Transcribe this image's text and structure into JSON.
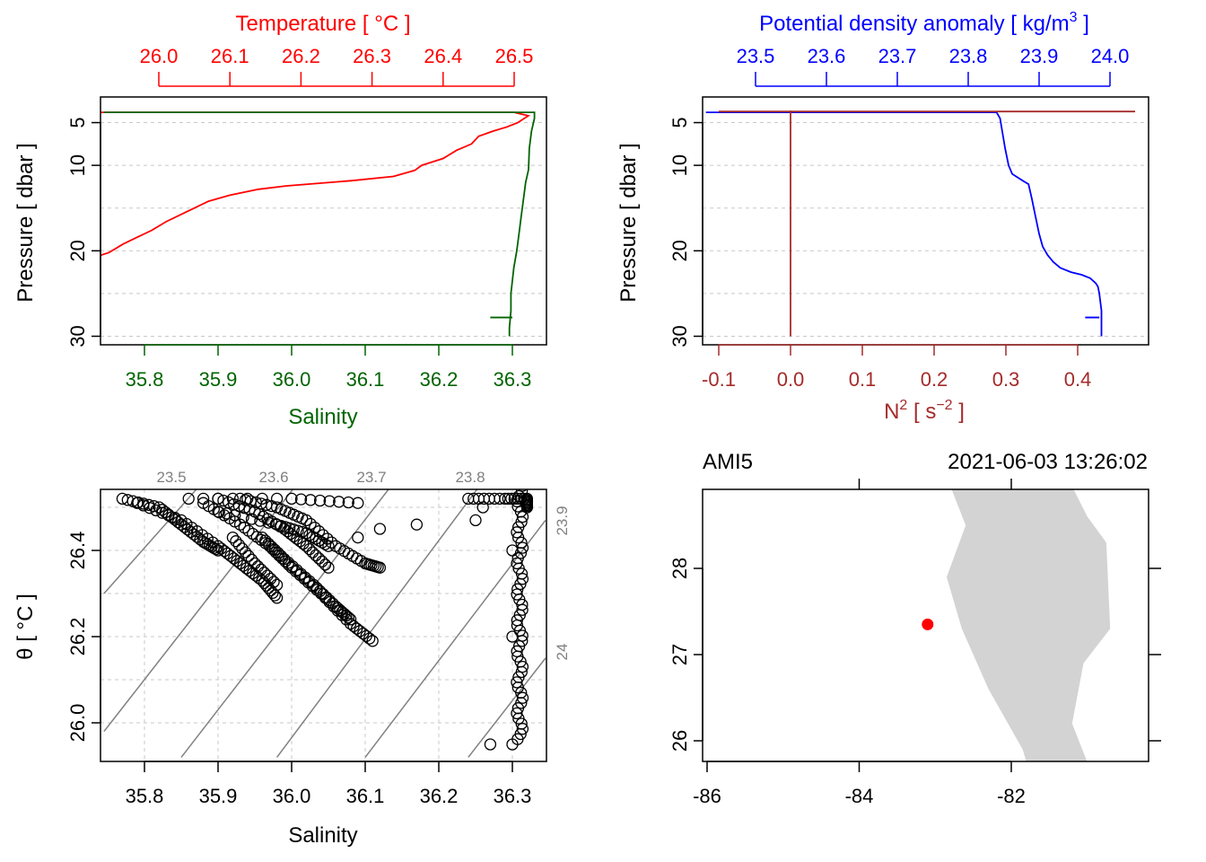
{
  "colors": {
    "temperature": "#ff0000",
    "salinity": "#006400",
    "density": "#0000ff",
    "n2": "#a52a2a",
    "grid": "#c8c8c8",
    "isopycnal": "#808080",
    "land": "#d3d3d3",
    "station": "#ff0000"
  },
  "chart_data": [
    {
      "type": "line",
      "panel": "temperature-salinity-profile",
      "top_axis_label": "Temperature [ °C ]",
      "bottom_axis_label": "Salinity",
      "ylabel": "Pressure [ dbar ]",
      "y_reversed": true,
      "ylim": [
        31,
        2
      ],
      "temperature_lim": [
        25.98,
        26.62
      ],
      "salinity_lim": [
        35.745,
        36.345
      ],
      "temperature_ticks": [
        "26.0",
        "26.1",
        "26.2",
        "26.3",
        "26.4",
        "26.5"
      ],
      "salinity_ticks": [
        "35.8",
        "35.9",
        "36.0",
        "36.1",
        "36.2",
        "36.3"
      ],
      "pressure_ticks": [
        "5",
        "10",
        "20",
        "30"
      ],
      "pressure_tick_values": [
        5,
        10,
        20,
        30
      ],
      "grid_pressures": [
        5,
        10,
        15,
        20,
        25,
        30
      ],
      "series": [
        {
          "name": "Temperature",
          "x_units": "°C",
          "points": [
            [
              25.88,
              3.8
            ],
            [
              26.5,
              3.8
            ],
            [
              26.52,
              4.2
            ],
            [
              26.505,
              5.0
            ],
            [
              26.49,
              5.5
            ],
            [
              26.47,
              6.0
            ],
            [
              26.45,
              6.6
            ],
            [
              26.44,
              7.5
            ],
            [
              26.42,
              8.2
            ],
            [
              26.4,
              9.2
            ],
            [
              26.37,
              10.0
            ],
            [
              26.36,
              10.6
            ],
            [
              26.33,
              11.3
            ],
            [
              26.27,
              11.8
            ],
            [
              26.18,
              12.4
            ],
            [
              26.14,
              12.8
            ],
            [
              26.1,
              13.5
            ],
            [
              26.07,
              14.2
            ],
            [
              26.05,
              15.0
            ],
            [
              26.03,
              15.8
            ],
            [
              26.01,
              16.6
            ],
            [
              25.99,
              17.6
            ],
            [
              25.97,
              18.4
            ],
            [
              25.95,
              19.2
            ],
            [
              25.93,
              20.2
            ],
            [
              25.9,
              21.0
            ],
            [
              25.85,
              21.6
            ],
            [
              25.78,
              22.0
            ],
            [
              25.69,
              22.6
            ],
            [
              25.63,
              22.9
            ],
            [
              25.62,
              23.3
            ],
            [
              25.61,
              23.8
            ],
            [
              25.59,
              24.2
            ],
            [
              25.57,
              24.7
            ],
            [
              25.555,
              25.5
            ],
            [
              25.553,
              27.5
            ],
            [
              25.553,
              30.0
            ]
          ]
        },
        {
          "name": "Salinity",
          "x_units": "PSU",
          "points": [
            [
              35.745,
              3.8
            ],
            [
              36.33,
              3.8
            ],
            [
              36.33,
              4.5
            ],
            [
              36.326,
              6.0
            ],
            [
              36.323,
              8.0
            ],
            [
              36.322,
              10.5
            ],
            [
              36.318,
              12.0
            ],
            [
              36.315,
              14.0
            ],
            [
              36.312,
              16.0
            ],
            [
              36.309,
              18.0
            ],
            [
              36.306,
              20.0
            ],
            [
              36.302,
              22.0
            ],
            [
              36.3,
              23.5
            ],
            [
              36.298,
              25.0
            ],
            [
              36.298,
              27.0
            ],
            [
              36.296,
              29.0
            ],
            [
              36.296,
              30.0
            ]
          ],
          "short_segment": [
            [
              36.27,
              27.8
            ],
            [
              36.3,
              27.8
            ]
          ]
        }
      ]
    },
    {
      "type": "line",
      "panel": "density-n2-profile",
      "top_axis_label": "Potential density anomaly [ kg/m",
      "top_axis_label_sup": "3",
      "top_axis_label_end": " ]",
      "bottom_axis_label": "N",
      "bottom_axis_label_sup": "2",
      "bottom_axis_label_mid": " [ s",
      "bottom_axis_label_sup2": "−2",
      "bottom_axis_label_end": " ]",
      "ylabel": "Pressure [ dbar ]",
      "y_reversed": true,
      "ylim": [
        31,
        2
      ],
      "density_lim": [
        23.43,
        24.03
      ],
      "n2_lim": [
        -0.1,
        0.5
      ],
      "density_ticks": [
        "23.5",
        "23.6",
        "23.7",
        "23.8",
        "23.9",
        "24.0"
      ],
      "n2_ticks": [
        "-0.1",
        "0.0",
        "0.1",
        "0.2",
        "0.3",
        "0.4"
      ],
      "pressure_ticks": [
        "5",
        "10",
        "20",
        "30"
      ],
      "pressure_tick_values": [
        5,
        10,
        20,
        30
      ],
      "grid_pressures": [
        5,
        10,
        15,
        20,
        25,
        30
      ],
      "series": [
        {
          "name": "Potential density anomaly",
          "x_units": "kg/m3",
          "points": [
            [
              23.43,
              3.8
            ],
            [
              23.84,
              3.8
            ],
            [
              23.845,
              4.5
            ],
            [
              23.848,
              6.0
            ],
            [
              23.852,
              8.0
            ],
            [
              23.857,
              10.0
            ],
            [
              23.862,
              11.0
            ],
            [
              23.875,
              11.7
            ],
            [
              23.885,
              12.2
            ],
            [
              23.89,
              14.0
            ],
            [
              23.895,
              16.0
            ],
            [
              23.9,
              18.0
            ],
            [
              23.905,
              19.5
            ],
            [
              23.912,
              20.5
            ],
            [
              23.92,
              21.3
            ],
            [
              23.93,
              22.0
            ],
            [
              23.945,
              22.5
            ],
            [
              23.96,
              22.8
            ],
            [
              23.972,
              23.2
            ],
            [
              23.98,
              23.8
            ],
            [
              23.983,
              24.2
            ],
            [
              23.985,
              25.0
            ],
            [
              23.988,
              27.0
            ],
            [
              23.988,
              30.0
            ]
          ],
          "short_segment": [
            [
              23.965,
              27.8
            ],
            [
              23.985,
              27.8
            ]
          ]
        },
        {
          "name": "N2",
          "x_units": "s^-2",
          "points": [
            [
              -0.1,
              3.7
            ],
            [
              0.48,
              3.7
            ]
          ],
          "vertical_segment": [
            [
              0.0,
              3.6
            ],
            [
              0.0,
              30.0
            ]
          ]
        }
      ]
    },
    {
      "type": "scatter",
      "panel": "theta-salinity",
      "xlabel": "Salinity",
      "ylabel": "θ [ °C ]",
      "xlim": [
        35.745,
        36.345
      ],
      "ylim": [
        25.92,
        26.56
      ],
      "x_ticks": [
        "35.8",
        "35.9",
        "36.0",
        "36.1",
        "36.2",
        "36.3"
      ],
      "y_ticks": [
        "26.0",
        "26.2",
        "26.4"
      ],
      "y_tick_values": [
        26.0,
        26.2,
        26.4
      ],
      "x_grid": [
        35.8,
        35.9,
        36.0,
        36.1,
        36.2,
        36.3
      ],
      "y_grid": [
        26.0,
        26.1,
        26.2,
        26.3,
        26.4,
        26.5
      ],
      "isopycnal_labels_top": [
        "23.5",
        "23.6",
        "23.7",
        "23.8"
      ],
      "isopycnal_labels_right": [
        "23.9",
        "24"
      ],
      "isopycnal_lines": [
        [
          [
            35.745,
            26.3
          ],
          [
            35.88,
            26.56
          ]
        ],
        [
          [
            35.745,
            25.98
          ],
          [
            36.01,
            26.56
          ]
        ],
        [
          [
            35.85,
            25.92
          ],
          [
            36.14,
            26.56
          ]
        ],
        [
          [
            35.98,
            25.92
          ],
          [
            36.26,
            26.56
          ]
        ],
        [
          [
            36.1,
            25.92
          ],
          [
            36.345,
            26.47
          ]
        ],
        [
          [
            36.24,
            25.92
          ],
          [
            36.345,
            26.15
          ]
        ]
      ],
      "scatter_tracks": [
        [
          [
            35.77,
            26.52
          ],
          [
            35.82,
            26.5
          ],
          [
            35.85,
            26.46
          ],
          [
            35.88,
            26.42
          ],
          [
            35.9,
            26.4
          ]
        ],
        [
          [
            35.79,
            26.51
          ],
          [
            35.85,
            26.47
          ],
          [
            35.9,
            26.41
          ],
          [
            35.93,
            26.37
          ],
          [
            35.96,
            26.33
          ],
          [
            35.98,
            26.29
          ]
        ],
        [
          [
            35.88,
            26.51
          ],
          [
            35.93,
            26.46
          ],
          [
            35.97,
            26.41
          ],
          [
            36.0,
            26.36
          ],
          [
            36.04,
            26.3
          ],
          [
            36.08,
            26.23
          ],
          [
            36.11,
            26.19
          ]
        ],
        [
          [
            35.9,
            26.52
          ],
          [
            35.95,
            26.49
          ],
          [
            35.99,
            26.45
          ],
          [
            36.02,
            26.41
          ],
          [
            36.05,
            26.36
          ]
        ],
        [
          [
            35.93,
            26.52
          ],
          [
            35.98,
            26.5
          ],
          [
            36.02,
            26.47
          ],
          [
            36.06,
            26.41
          ],
          [
            36.1,
            26.37
          ],
          [
            36.12,
            26.36
          ]
        ],
        [
          [
            35.9,
            26.49
          ],
          [
            35.98,
            26.46
          ],
          [
            36.02,
            26.44
          ],
          [
            36.05,
            26.41
          ]
        ],
        [
          [
            35.86,
            26.52
          ],
          [
            36.0,
            26.52
          ],
          [
            36.09,
            26.51
          ]
        ],
        [
          [
            35.96,
            26.43
          ],
          [
            35.99,
            26.38
          ],
          [
            36.03,
            26.32
          ],
          [
            36.06,
            26.27
          ],
          [
            36.08,
            26.24
          ]
        ],
        [
          [
            35.92,
            26.43
          ],
          [
            35.95,
            26.37
          ],
          [
            35.98,
            26.32
          ]
        ],
        [
          [
            36.24,
            26.52
          ],
          [
            36.29,
            26.52
          ],
          [
            36.32,
            26.52
          ],
          [
            36.32,
            26.5
          ]
        ]
      ],
      "vertical_cluster": [
        36.31,
        26.55,
        25.95
      ],
      "bottom_cluster": [
        [
          36.27,
          25.95
        ],
        [
          36.3,
          25.95
        ]
      ],
      "isolated_points": [
        [
          36.12,
          26.45
        ],
        [
          36.17,
          26.46
        ],
        [
          36.25,
          26.47
        ],
        [
          36.26,
          26.5
        ],
        [
          36.09,
          26.43
        ],
        [
          36.3,
          26.4
        ],
        [
          36.3,
          26.2
        ]
      ]
    },
    {
      "type": "map",
      "panel": "station-map",
      "station_label": "AMI5",
      "datetime": "2021-06-03 13:26:02",
      "xlim": [
        -86.05,
        -80.2
      ],
      "ylim": [
        25.75,
        28.95
      ],
      "x_ticks": [
        "-86",
        "-84",
        "-82"
      ],
      "x_tick_values": [
        -86,
        -84,
        -82
      ],
      "top_tick_values": [
        -84,
        -82
      ],
      "y_ticks": [
        "26",
        "27",
        "28"
      ],
      "y_tick_values": [
        26,
        27,
        28
      ],
      "station": [
        -83.1,
        27.35
      ],
      "land_polygon": [
        [
          -82.8,
          28.95
        ],
        [
          -81.2,
          28.95
        ],
        [
          -81.0,
          28.6
        ],
        [
          -80.75,
          28.3
        ],
        [
          -80.7,
          27.3
        ],
        [
          -81.05,
          26.9
        ],
        [
          -81.2,
          26.2
        ],
        [
          -81.0,
          25.75
        ],
        [
          -81.8,
          25.75
        ],
        [
          -81.85,
          25.9
        ],
        [
          -82.3,
          26.6
        ],
        [
          -82.65,
          27.3
        ],
        [
          -82.85,
          27.9
        ],
        [
          -82.6,
          28.5
        ]
      ]
    }
  ]
}
